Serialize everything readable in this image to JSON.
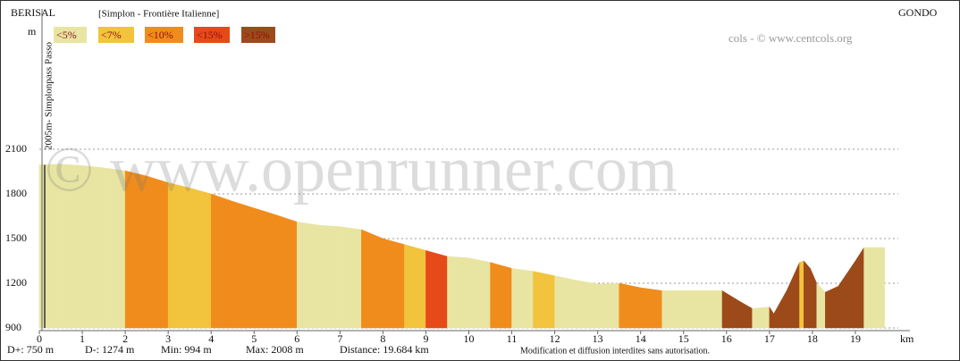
{
  "chart_data": {
    "type": "elevation-profile",
    "start_label": "BERISAL",
    "end_label": "GONDO",
    "title": "[Simplon - Frontière Italienne]",
    "y_unit": "m",
    "x_unit": "km",
    "credit": "cols - © www.centcols.org",
    "watermark": "© www.openrunner.com",
    "pass_label": "2005m- Simplonpass Passo",
    "legend": [
      {
        "name": "<5%",
        "color": "#e8e5a2"
      },
      {
        "name": "<7%",
        "color": "#f2c33c"
      },
      {
        "name": "<10%",
        "color": "#f08c1c"
      },
      {
        "name": "<15%",
        "color": "#e64a19"
      },
      {
        "name": ">15%",
        "color": "#9c4a1a"
      }
    ],
    "x": [
      0,
      0.5,
      1,
      1.5,
      2,
      2.5,
      3,
      3.5,
      4,
      4.5,
      5,
      5.5,
      6,
      6.5,
      7,
      7.5,
      8,
      8.5,
      9,
      9.5,
      10,
      10.5,
      11,
      11.5,
      12,
      12.5,
      13,
      13.5,
      14,
      14.5,
      15,
      15.9,
      16.3,
      16.6,
      17,
      17.1,
      17.4,
      17.7,
      17.8,
      17.95,
      18.1,
      18.3,
      18.6,
      19,
      19.2,
      19.68
    ],
    "values": [
      1995,
      2000,
      1990,
      1975,
      1955,
      1920,
      1875,
      1840,
      1800,
      1750,
      1705,
      1660,
      1612,
      1590,
      1580,
      1560,
      1500,
      1460,
      1420,
      1380,
      1370,
      1340,
      1300,
      1280,
      1250,
      1220,
      1195,
      1200,
      1170,
      1150,
      1150,
      1150,
      1080,
      1030,
      1040,
      995,
      1150,
      1340,
      1350,
      1300,
      1200,
      1140,
      1180,
      1350,
      1440,
      1440
    ],
    "segment_colors": [
      "#e8e5a2",
      "#e8e5a2",
      "#e8e5a2",
      "#e8e5a2",
      "#f08c1c",
      "#f08c1c",
      "#f2c33c",
      "#f2c33c",
      "#f08c1c",
      "#f08c1c",
      "#f08c1c",
      "#f08c1c",
      "#e8e5a2",
      "#e8e5a2",
      "#e8e5a2",
      "#f08c1c",
      "#f08c1c",
      "#f2c33c",
      "#e64a19",
      "#e8e5a2",
      "#e8e5a2",
      "#f08c1c",
      "#e8e5a2",
      "#f2c33c",
      "#e8e5a2",
      "#e8e5a2",
      "#e8e5a2",
      "#f08c1c",
      "#f08c1c",
      "#e8e5a2",
      "#e8e5a2",
      "#9c4a1a",
      "#9c4a1a",
      "#e8e5a2",
      "#9c4a1a",
      "#9c4a1a",
      "#9c4a1a",
      "#f2c33c",
      "#9c4a1a",
      "#9c4a1a",
      "#e8e5a2",
      "#9c4a1a",
      "#9c4a1a",
      "#9c4a1a",
      "#e8e5a2"
    ],
    "xlim": [
      0,
      20
    ],
    "xticks": [
      0,
      1,
      2,
      3,
      4,
      5,
      6,
      7,
      8,
      9,
      10,
      11,
      12,
      13,
      14,
      15,
      16,
      17,
      18,
      19
    ],
    "ylim": [
      900,
      2100
    ],
    "yticks": [
      900,
      1200,
      1500,
      1800,
      2100
    ],
    "grid": true,
    "stats": [
      "D+: 750 m",
      "D-: 1274 m",
      "Min: 994 m",
      "Max: 2008 m",
      "Distance: 19.684 km"
    ],
    "notice": "Modification et diffusion interdites sans autorisation."
  }
}
